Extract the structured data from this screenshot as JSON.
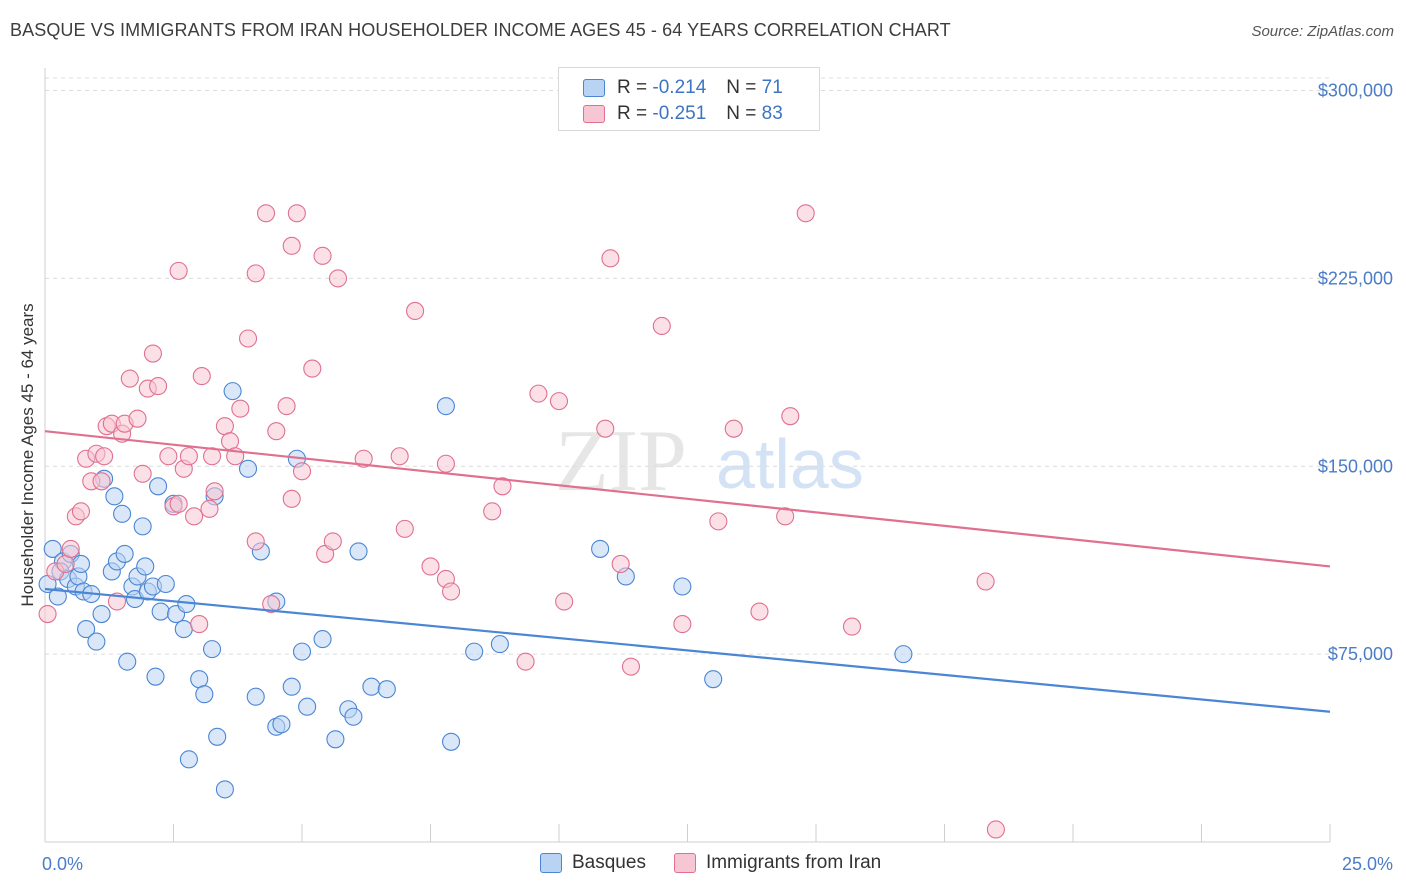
{
  "title": "BASQUE VS IMMIGRANTS FROM IRAN HOUSEHOLDER INCOME AGES 45 - 64 YEARS CORRELATION CHART",
  "source": "Source: ZipAtlas.com",
  "watermark": {
    "zip": "ZIP",
    "atlas": "atlas"
  },
  "legend": {
    "rows": [
      {
        "r_label": "R = ",
        "r_value": "-0.214",
        "n_label": "N = ",
        "n_value": "71",
        "color": "#a9c8f0"
      },
      {
        "r_label": "R = ",
        "r_value": "-0.251",
        "n_label": "N = ",
        "n_value": "83",
        "color": "#f6b8cb"
      }
    ]
  },
  "bottom_legend": {
    "basques": "Basques",
    "iran": "Immigrants from Iran"
  },
  "chart_data": {
    "type": "scatter",
    "ylabel": "Householder Income Ages 45 - 64 years",
    "x_ticks": [
      "0.0%",
      "25.0%"
    ],
    "y_ticks": [
      "$300,000",
      "$225,000",
      "$150,000",
      "$75,000"
    ],
    "xlim": [
      0,
      25
    ],
    "ylim": [
      0,
      305000
    ],
    "series": [
      {
        "name": "Basques",
        "color": "#4a86d4",
        "fill": "#b9d3f3",
        "trend": {
          "x": [
            0,
            25
          ],
          "y": [
            101000,
            52000
          ]
        },
        "points": [
          [
            0.15,
            117000
          ],
          [
            0.35,
            112000
          ],
          [
            0.3,
            108000
          ],
          [
            0.45,
            105000
          ],
          [
            0.5,
            115000
          ],
          [
            0.6,
            102000
          ],
          [
            0.65,
            106000
          ],
          [
            0.7,
            111000
          ],
          [
            0.75,
            100000
          ],
          [
            0.8,
            85000
          ],
          [
            0.9,
            99000
          ],
          [
            1.0,
            80000
          ],
          [
            1.1,
            91000
          ],
          [
            1.15,
            145000
          ],
          [
            1.3,
            108000
          ],
          [
            1.35,
            138000
          ],
          [
            1.4,
            112000
          ],
          [
            1.5,
            131000
          ],
          [
            1.55,
            115000
          ],
          [
            1.6,
            72000
          ],
          [
            1.7,
            102000
          ],
          [
            1.75,
            97000
          ],
          [
            1.8,
            106000
          ],
          [
            1.9,
            126000
          ],
          [
            2.0,
            100000
          ],
          [
            2.1,
            102000
          ],
          [
            2.15,
            66000
          ],
          [
            2.2,
            142000
          ],
          [
            2.25,
            92000
          ],
          [
            2.35,
            103000
          ],
          [
            2.5,
            135000
          ],
          [
            2.55,
            91000
          ],
          [
            2.7,
            85000
          ],
          [
            2.75,
            95000
          ],
          [
            2.8,
            33000
          ],
          [
            3.0,
            65000
          ],
          [
            3.1,
            59000
          ],
          [
            3.25,
            77000
          ],
          [
            3.3,
            138000
          ],
          [
            3.35,
            42000
          ],
          [
            3.5,
            21000
          ],
          [
            3.65,
            180000
          ],
          [
            3.95,
            149000
          ],
          [
            4.1,
            58000
          ],
          [
            4.2,
            116000
          ],
          [
            4.5,
            46000
          ],
          [
            4.6,
            47000
          ],
          [
            4.5,
            96000
          ],
          [
            4.8,
            62000
          ],
          [
            4.9,
            153000
          ],
          [
            5.0,
            76000
          ],
          [
            5.1,
            54000
          ],
          [
            5.4,
            81000
          ],
          [
            5.65,
            41000
          ],
          [
            5.9,
            53000
          ],
          [
            6.0,
            50000
          ],
          [
            6.1,
            116000
          ],
          [
            6.35,
            62000
          ],
          [
            6.65,
            61000
          ],
          [
            7.8,
            174000
          ],
          [
            7.9,
            40000
          ],
          [
            8.35,
            76000
          ],
          [
            8.85,
            79000
          ],
          [
            10.8,
            117000
          ],
          [
            11.3,
            106000
          ],
          [
            12.4,
            102000
          ],
          [
            13.0,
            65000
          ],
          [
            16.7,
            75000
          ],
          [
            0.05,
            103000
          ],
          [
            0.25,
            98000
          ],
          [
            1.95,
            110000
          ]
        ]
      },
      {
        "name": "Immigrants from Iran",
        "color": "#e0708f",
        "fill": "#f7c6d4",
        "trend": {
          "x": [
            0,
            25
          ],
          "y": [
            164000,
            110000
          ]
        },
        "points": [
          [
            0.05,
            91000
          ],
          [
            0.2,
            108000
          ],
          [
            0.4,
            111000
          ],
          [
            0.5,
            117000
          ],
          [
            0.6,
            130000
          ],
          [
            0.7,
            132000
          ],
          [
            0.8,
            153000
          ],
          [
            0.9,
            144000
          ],
          [
            1.0,
            155000
          ],
          [
            1.1,
            144000
          ],
          [
            1.15,
            154000
          ],
          [
            1.2,
            166000
          ],
          [
            1.3,
            167000
          ],
          [
            1.4,
            96000
          ],
          [
            1.5,
            163000
          ],
          [
            1.55,
            167000
          ],
          [
            1.65,
            185000
          ],
          [
            1.8,
            169000
          ],
          [
            1.9,
            147000
          ],
          [
            2.0,
            181000
          ],
          [
            2.1,
            195000
          ],
          [
            2.2,
            182000
          ],
          [
            2.4,
            154000
          ],
          [
            2.5,
            134000
          ],
          [
            2.6,
            135000
          ],
          [
            2.6,
            228000
          ],
          [
            2.7,
            149000
          ],
          [
            2.8,
            154000
          ],
          [
            2.9,
            130000
          ],
          [
            3.0,
            87000
          ],
          [
            3.05,
            186000
          ],
          [
            3.2,
            133000
          ],
          [
            3.25,
            154000
          ],
          [
            3.3,
            140000
          ],
          [
            3.5,
            166000
          ],
          [
            3.6,
            160000
          ],
          [
            3.7,
            154000
          ],
          [
            3.8,
            173000
          ],
          [
            3.95,
            201000
          ],
          [
            4.1,
            120000
          ],
          [
            4.1,
            227000
          ],
          [
            4.3,
            251000
          ],
          [
            4.4,
            95000
          ],
          [
            4.5,
            164000
          ],
          [
            4.7,
            174000
          ],
          [
            4.8,
            137000
          ],
          [
            4.8,
            238000
          ],
          [
            4.9,
            251000
          ],
          [
            5.0,
            148000
          ],
          [
            5.2,
            189000
          ],
          [
            5.4,
            234000
          ],
          [
            5.45,
            115000
          ],
          [
            5.6,
            120000
          ],
          [
            5.7,
            225000
          ],
          [
            6.2,
            153000
          ],
          [
            6.9,
            154000
          ],
          [
            7.0,
            125000
          ],
          [
            7.2,
            212000
          ],
          [
            7.5,
            110000
          ],
          [
            7.8,
            105000
          ],
          [
            7.8,
            151000
          ],
          [
            7.9,
            100000
          ],
          [
            8.7,
            132000
          ],
          [
            8.9,
            142000
          ],
          [
            9.35,
            72000
          ],
          [
            9.6,
            179000
          ],
          [
            10.0,
            176000
          ],
          [
            10.1,
            96000
          ],
          [
            10.9,
            165000
          ],
          [
            11.0,
            233000
          ],
          [
            11.2,
            111000
          ],
          [
            11.4,
            70000
          ],
          [
            12.0,
            206000
          ],
          [
            12.4,
            87000
          ],
          [
            13.1,
            128000
          ],
          [
            13.4,
            165000
          ],
          [
            13.9,
            92000
          ],
          [
            14.4,
            130000
          ],
          [
            14.5,
            170000
          ],
          [
            14.8,
            251000
          ],
          [
            15.7,
            86000
          ],
          [
            18.3,
            104000
          ],
          [
            18.5,
            5000
          ]
        ]
      }
    ]
  }
}
